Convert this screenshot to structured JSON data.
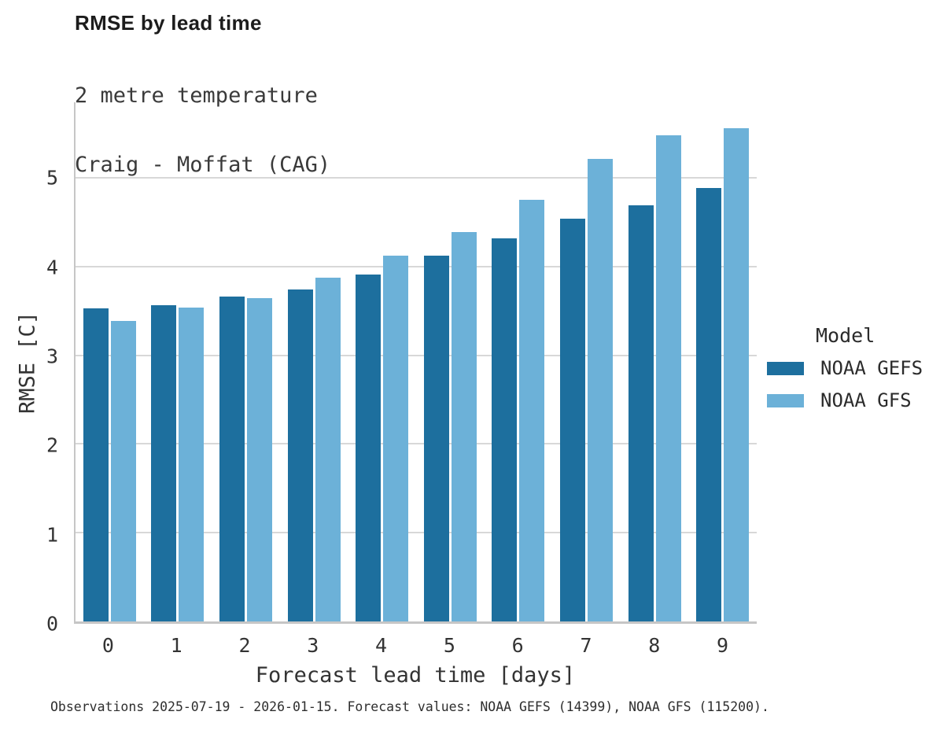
{
  "header": {
    "title": "RMSE by lead time",
    "subtitle1": "2 metre temperature",
    "subtitle2": "Craig - Moffat (CAG)"
  },
  "legend": {
    "title": "Model",
    "entries": [
      {
        "label": "NOAA GEFS",
        "color": "#1d6f9e"
      },
      {
        "label": "NOAA GFS",
        "color": "#6cb1d8"
      }
    ]
  },
  "footer": {
    "note": "Observations 2025-07-19 - 2026-01-15. Forecast values: NOAA GEFS (14399), NOAA GFS (115200)."
  },
  "colors": {
    "gefs_dark_blue": "#1d6f9e",
    "gfs_light_blue": "#6cb1d8",
    "gridline": "#d8d8d8",
    "spine": "#c6c6c6",
    "text": "#2b2b2b"
  },
  "chart_data": {
    "type": "bar",
    "title": "RMSE by lead time",
    "subtitle": [
      "2 metre temperature",
      "Craig - Moffat (CAG)"
    ],
    "xlabel": "Forecast lead time [days]",
    "ylabel": "RMSE [C]",
    "categories": [
      "0",
      "1",
      "2",
      "3",
      "4",
      "5",
      "6",
      "7",
      "8",
      "9"
    ],
    "series": [
      {
        "name": "NOAA GEFS",
        "color": "#1d6f9e",
        "values": [
          3.53,
          3.56,
          3.66,
          3.74,
          3.91,
          4.12,
          4.32,
          4.54,
          4.69,
          4.88
        ]
      },
      {
        "name": "NOAA GFS",
        "color": "#6cb1d8",
        "values": [
          3.39,
          3.54,
          3.64,
          3.87,
          4.12,
          4.39,
          4.75,
          5.21,
          5.48,
          5.56
        ]
      }
    ],
    "ylim": [
      0,
      5.85
    ],
    "yticks": [
      0,
      1,
      2,
      3,
      4,
      5
    ],
    "grid": "horizontal",
    "legend_title": "Model",
    "legend_position": "right",
    "footnote": "Observations 2025-07-19 - 2026-01-15. Forecast values: NOAA GEFS (14399), NOAA GFS (115200)."
  }
}
